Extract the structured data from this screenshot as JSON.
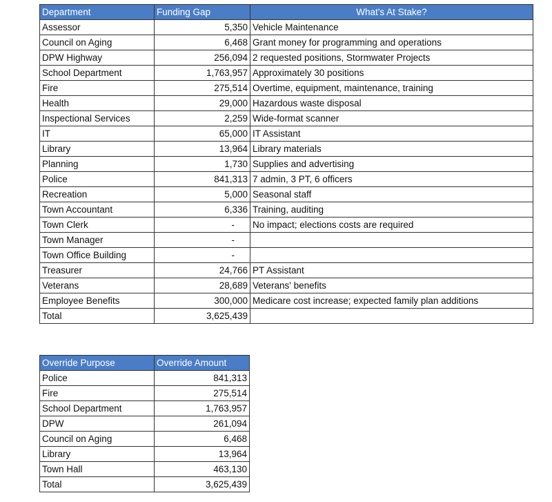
{
  "funding_table": {
    "headers": [
      "Department",
      "Funding Gap",
      "What's At Stake?"
    ],
    "rows": [
      [
        "Assessor",
        "5,350",
        "Vehicle Maintenance"
      ],
      [
        "Council on Aging",
        "6,468",
        "Grant money for programming and operations"
      ],
      [
        "DPW Highway",
        "256,094",
        "2 requested positions, Stormwater Projects"
      ],
      [
        "School Department",
        "1,763,957",
        "Approximately 30 positions"
      ],
      [
        "Fire",
        "275,514",
        "Overtime, equipment, maintenance, training"
      ],
      [
        "Health",
        "29,000",
        "Hazardous waste disposal"
      ],
      [
        "Inspectional Services",
        "2,259",
        "Wide-format scanner"
      ],
      [
        "IT",
        "65,000",
        "IT Assistant"
      ],
      [
        "Library",
        "13,964",
        "Library materials"
      ],
      [
        "Planning",
        "1,730",
        "Supplies and advertising"
      ],
      [
        "Police",
        "841,313",
        "7 admin, 3 PT, 6 officers"
      ],
      [
        "Recreation",
        "5,000",
        "Seasonal staff"
      ],
      [
        "Town Accountant",
        "6,336",
        "Training, auditing"
      ],
      [
        "Town Clerk",
        "-",
        "No impact; elections costs are required"
      ],
      [
        "Town Manager",
        "-",
        ""
      ],
      [
        "Town Office Building",
        "-",
        ""
      ],
      [
        "Treasurer",
        "24,766",
        "PT Assistant"
      ],
      [
        "Veterans",
        "28,689",
        "Veterans' benefits"
      ],
      [
        "Employee Benefits",
        "300,000",
        "Medicare cost increase; expected family plan additions"
      ],
      [
        "Total",
        "3,625,439",
        ""
      ]
    ]
  },
  "override_table": {
    "headers": [
      "Override Purpose",
      "Override Amount"
    ],
    "rows": [
      [
        "Police",
        "841,313"
      ],
      [
        "Fire",
        "275,514"
      ],
      [
        "School Department",
        "1,763,957"
      ],
      [
        "DPW",
        "261,094"
      ],
      [
        "Council on Aging",
        "6,468"
      ],
      [
        "Library",
        "13,964"
      ],
      [
        "Town Hall",
        "463,130"
      ],
      [
        "Total",
        "3,625,439"
      ]
    ]
  },
  "colors": {
    "header_bg": "#4a7dc6",
    "header_text": "#ffffff"
  }
}
